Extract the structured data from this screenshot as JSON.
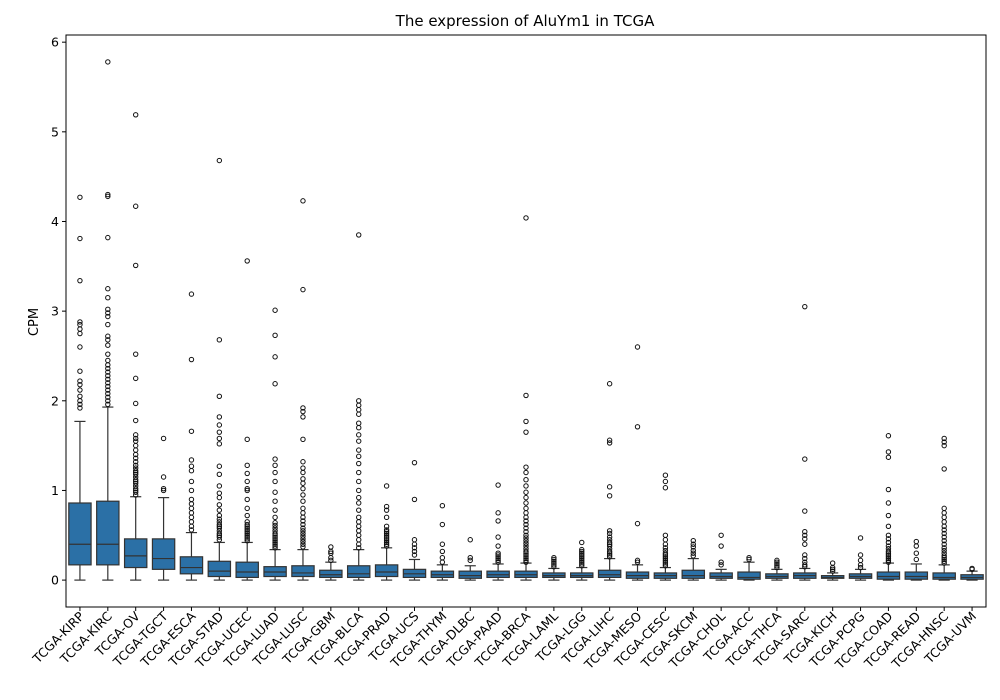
{
  "chart_data": {
    "type": "box",
    "title": "The expression of AluYm1 in TCGA",
    "xlabel": "",
    "ylabel": "CPM",
    "ylim": [
      -0.3,
      6.08
    ],
    "yticks": [
      0,
      1,
      2,
      3,
      4,
      5,
      6
    ],
    "grid": false,
    "legend": "none",
    "box_color": "#2b70a6",
    "line_color": "#333333",
    "categories": [
      "TCGA-KIRP",
      "TCGA-KIRC",
      "TCGA-OV",
      "TCGA-TGCT",
      "TCGA-ESCA",
      "TCGA-STAD",
      "TCGA-UCEC",
      "TCGA-LUAD",
      "TCGA-LUSC",
      "TCGA-GBM",
      "TCGA-BLCA",
      "TCGA-PRAD",
      "TCGA-UCS",
      "TCGA-THYM",
      "TCGA-DLBC",
      "TCGA-PAAD",
      "TCGA-BRCA",
      "TCGA-LAML",
      "TCGA-LGG",
      "TCGA-LIHC",
      "TCGA-MESO",
      "TCGA-CESC",
      "TCGA-SKCM",
      "TCGA-CHOL",
      "TCGA-ACC",
      "TCGA-THCA",
      "TCGA-SARC",
      "TCGA-KICH",
      "TCGA-PCPG",
      "TCGA-COAD",
      "TCGA-READ",
      "TCGA-HNSC",
      "TCGA-UVM"
    ],
    "boxes": [
      {
        "q1": 0.17,
        "median": 0.4,
        "q3": 0.86,
        "whislo": 0,
        "whishi": 1.77,
        "fliers": [
          1.92,
          1.96,
          2.0,
          2.05,
          2.12,
          2.18,
          2.22,
          2.33,
          2.6,
          2.75,
          2.8,
          2.85,
          2.88,
          3.34,
          3.81,
          4.27
        ]
      },
      {
        "q1": 0.17,
        "median": 0.4,
        "q3": 0.88,
        "whislo": 0,
        "whishi": 1.93,
        "fliers": [
          1.96,
          2.0,
          2.04,
          2.08,
          2.12,
          2.16,
          2.2,
          2.24,
          2.28,
          2.32,
          2.36,
          2.4,
          2.45,
          2.52,
          2.62,
          2.68,
          2.72,
          2.85,
          2.94,
          2.98,
          3.02,
          3.15,
          3.25,
          3.82,
          4.28,
          4.3,
          5.78
        ]
      },
      {
        "q1": 0.14,
        "median": 0.27,
        "q3": 0.46,
        "whislo": 0,
        "whishi": 0.93,
        "fliers": [
          0.95,
          0.98,
          1.0,
          1.02,
          1.05,
          1.08,
          1.1,
          1.12,
          1.15,
          1.18,
          1.2,
          1.22,
          1.25,
          1.28,
          1.32,
          1.36,
          1.4,
          1.45,
          1.5,
          1.55,
          1.58,
          1.62,
          1.78,
          1.97,
          2.25,
          2.52,
          3.51,
          4.17,
          5.19
        ]
      },
      {
        "q1": 0.12,
        "median": 0.24,
        "q3": 0.46,
        "whislo": 0,
        "whishi": 0.92,
        "fliers": [
          1.0,
          1.02,
          1.15,
          1.58
        ]
      },
      {
        "q1": 0.07,
        "median": 0.14,
        "q3": 0.26,
        "whislo": 0,
        "whishi": 0.53,
        "fliers": [
          0.56,
          0.6,
          0.65,
          0.7,
          0.75,
          0.8,
          0.85,
          0.9,
          1.0,
          1.1,
          1.22,
          1.27,
          1.34,
          1.66,
          2.46,
          3.19
        ]
      },
      {
        "q1": 0.04,
        "median": 0.1,
        "q3": 0.21,
        "whislo": 0,
        "whishi": 0.42,
        "fliers": [
          0.45,
          0.48,
          0.5,
          0.52,
          0.55,
          0.58,
          0.6,
          0.62,
          0.65,
          0.68,
          0.72,
          0.78,
          0.84,
          0.92,
          0.97,
          1.05,
          1.18,
          1.27,
          1.52,
          1.58,
          1.65,
          1.73,
          1.82,
          2.05,
          2.68,
          4.68
        ]
      },
      {
        "q1": 0.03,
        "median": 0.09,
        "q3": 0.2,
        "whislo": 0,
        "whishi": 0.42,
        "fliers": [
          0.44,
          0.46,
          0.48,
          0.5,
          0.52,
          0.54,
          0.56,
          0.58,
          0.6,
          0.62,
          0.65,
          0.72,
          0.8,
          0.9,
          1.0,
          1.02,
          1.1,
          1.19,
          1.28,
          1.57,
          3.56
        ]
      },
      {
        "q1": 0.04,
        "median": 0.09,
        "q3": 0.15,
        "whislo": 0,
        "whishi": 0.34,
        "fliers": [
          0.36,
          0.38,
          0.4,
          0.42,
          0.44,
          0.46,
          0.48,
          0.5,
          0.52,
          0.55,
          0.58,
          0.61,
          0.64,
          0.7,
          0.78,
          0.88,
          0.98,
          1.1,
          1.2,
          1.28,
          1.35,
          2.19,
          2.49,
          2.73,
          3.01
        ]
      },
      {
        "q1": 0.04,
        "median": 0.08,
        "q3": 0.16,
        "whislo": 0,
        "whishi": 0.34,
        "fliers": [
          0.37,
          0.4,
          0.43,
          0.46,
          0.49,
          0.52,
          0.55,
          0.58,
          0.62,
          0.66,
          0.7,
          0.75,
          0.8,
          0.88,
          0.95,
          1.02,
          1.08,
          1.13,
          1.2,
          1.25,
          1.32,
          1.57,
          1.82,
          1.88,
          1.92,
          3.24,
          4.23
        ]
      },
      {
        "q1": 0.03,
        "median": 0.06,
        "q3": 0.11,
        "whislo": 0,
        "whishi": 0.2,
        "fliers": [
          0.22,
          0.25,
          0.3,
          0.32,
          0.37
        ]
      },
      {
        "q1": 0.03,
        "median": 0.07,
        "q3": 0.16,
        "whislo": 0,
        "whishi": 0.34,
        "fliers": [
          0.36,
          0.4,
          0.45,
          0.5,
          0.55,
          0.6,
          0.65,
          0.7,
          0.78,
          0.86,
          0.92,
          1.0,
          1.1,
          1.2,
          1.3,
          1.38,
          1.45,
          1.55,
          1.62,
          1.7,
          1.75,
          1.85,
          1.9,
          1.95,
          2.0,
          3.85
        ]
      },
      {
        "q1": 0.04,
        "median": 0.09,
        "q3": 0.17,
        "whislo": 0,
        "whishi": 0.36,
        "fliers": [
          0.38,
          0.4,
          0.42,
          0.44,
          0.46,
          0.48,
          0.5,
          0.52,
          0.54,
          0.56,
          0.6,
          0.7,
          0.78,
          0.82,
          1.05
        ]
      },
      {
        "q1": 0.03,
        "median": 0.07,
        "q3": 0.12,
        "whislo": 0,
        "whishi": 0.23,
        "fliers": [
          0.28,
          0.32,
          0.36,
          0.4,
          0.45,
          0.9,
          1.31
        ]
      },
      {
        "q1": 0.03,
        "median": 0.06,
        "q3": 0.1,
        "whislo": 0,
        "whishi": 0.17,
        "fliers": [
          0.2,
          0.25,
          0.32,
          0.4,
          0.62,
          0.83
        ]
      },
      {
        "q1": 0.02,
        "median": 0.05,
        "q3": 0.1,
        "whislo": 0,
        "whishi": 0.16,
        "fliers": [
          0.22,
          0.25,
          0.45
        ]
      },
      {
        "q1": 0.03,
        "median": 0.06,
        "q3": 0.1,
        "whislo": 0,
        "whishi": 0.18,
        "fliers": [
          0.2,
          0.22,
          0.24,
          0.26,
          0.28,
          0.3,
          0.38,
          0.48,
          0.66,
          0.75,
          1.06
        ]
      },
      {
        "q1": 0.03,
        "median": 0.06,
        "q3": 0.1,
        "whislo": 0,
        "whishi": 0.19,
        "fliers": [
          0.2,
          0.22,
          0.24,
          0.26,
          0.28,
          0.3,
          0.32,
          0.35,
          0.38,
          0.41,
          0.44,
          0.47,
          0.5,
          0.54,
          0.58,
          0.62,
          0.66,
          0.7,
          0.75,
          0.8,
          0.86,
          0.92,
          0.98,
          1.05,
          1.12,
          1.2,
          1.26,
          1.65,
          1.77,
          2.06,
          4.04
        ]
      },
      {
        "q1": 0.03,
        "median": 0.05,
        "q3": 0.08,
        "whislo": 0,
        "whishi": 0.13,
        "fliers": [
          0.15,
          0.17,
          0.19,
          0.21,
          0.23,
          0.25
        ]
      },
      {
        "q1": 0.03,
        "median": 0.05,
        "q3": 0.08,
        "whislo": 0,
        "whishi": 0.14,
        "fliers": [
          0.16,
          0.18,
          0.2,
          0.22,
          0.24,
          0.26,
          0.28,
          0.3,
          0.32,
          0.34,
          0.42
        ]
      },
      {
        "q1": 0.03,
        "median": 0.06,
        "q3": 0.11,
        "whislo": 0,
        "whishi": 0.24,
        "fliers": [
          0.26,
          0.28,
          0.3,
          0.32,
          0.35,
          0.38,
          0.4,
          0.42,
          0.45,
          0.48,
          0.52,
          0.55,
          0.94,
          1.04,
          1.53,
          1.56,
          2.19
        ]
      },
      {
        "q1": 0.02,
        "median": 0.05,
        "q3": 0.09,
        "whislo": 0,
        "whishi": 0.17,
        "fliers": [
          0.2,
          0.22,
          0.63,
          1.71,
          2.6
        ]
      },
      {
        "q1": 0.02,
        "median": 0.05,
        "q3": 0.08,
        "whislo": 0,
        "whishi": 0.14,
        "fliers": [
          0.16,
          0.18,
          0.2,
          0.22,
          0.24,
          0.26,
          0.28,
          0.3,
          0.33,
          0.36,
          0.4,
          0.45,
          0.5,
          1.03,
          1.1,
          1.17
        ]
      },
      {
        "q1": 0.02,
        "median": 0.05,
        "q3": 0.11,
        "whislo": 0,
        "whishi": 0.24,
        "fliers": [
          0.27,
          0.3,
          0.33,
          0.37,
          0.4,
          0.44
        ]
      },
      {
        "q1": 0.02,
        "median": 0.04,
        "q3": 0.08,
        "whislo": 0,
        "whishi": 0.12,
        "fliers": [
          0.17,
          0.2,
          0.38,
          0.5
        ]
      },
      {
        "q1": 0.01,
        "median": 0.03,
        "q3": 0.09,
        "whislo": 0,
        "whishi": 0.2,
        "fliers": [
          0.23,
          0.25
        ]
      },
      {
        "q1": 0.02,
        "median": 0.04,
        "q3": 0.07,
        "whislo": 0,
        "whishi": 0.12,
        "fliers": [
          0.14,
          0.16,
          0.18,
          0.2,
          0.22
        ]
      },
      {
        "q1": 0.02,
        "median": 0.05,
        "q3": 0.08,
        "whislo": 0,
        "whishi": 0.13,
        "fliers": [
          0.15,
          0.17,
          0.2,
          0.24,
          0.28,
          0.4,
          0.46,
          0.5,
          0.54,
          0.77,
          1.35,
          3.05
        ]
      },
      {
        "q1": 0.02,
        "median": 0.03,
        "q3": 0.05,
        "whislo": 0,
        "whishi": 0.08,
        "fliers": [
          0.1,
          0.12,
          0.14,
          0.19
        ]
      },
      {
        "q1": 0.02,
        "median": 0.04,
        "q3": 0.07,
        "whislo": 0,
        "whishi": 0.12,
        "fliers": [
          0.14,
          0.17,
          0.22,
          0.28,
          0.47
        ]
      },
      {
        "q1": 0.01,
        "median": 0.04,
        "q3": 0.09,
        "whislo": 0,
        "whishi": 0.19,
        "fliers": [
          0.2,
          0.22,
          0.24,
          0.26,
          0.28,
          0.3,
          0.32,
          0.35,
          0.38,
          0.42,
          0.46,
          0.5,
          0.6,
          0.72,
          0.86,
          1.01,
          1.37,
          1.43,
          1.61
        ]
      },
      {
        "q1": 0.01,
        "median": 0.04,
        "q3": 0.09,
        "whislo": 0,
        "whishi": 0.18,
        "fliers": [
          0.23,
          0.3,
          0.38,
          0.43
        ]
      },
      {
        "q1": 0.01,
        "median": 0.03,
        "q3": 0.08,
        "whislo": 0,
        "whishi": 0.17,
        "fliers": [
          0.19,
          0.21,
          0.23,
          0.25,
          0.27,
          0.3,
          0.33,
          0.36,
          0.4,
          0.44,
          0.48,
          0.52,
          0.56,
          0.6,
          0.65,
          0.7,
          0.75,
          0.8,
          1.24,
          1.5,
          1.54,
          1.58
        ]
      },
      {
        "q1": 0.01,
        "median": 0.03,
        "q3": 0.06,
        "whislo": 0,
        "whishi": 0.1,
        "fliers": [
          0.12,
          0.13
        ]
      }
    ]
  }
}
